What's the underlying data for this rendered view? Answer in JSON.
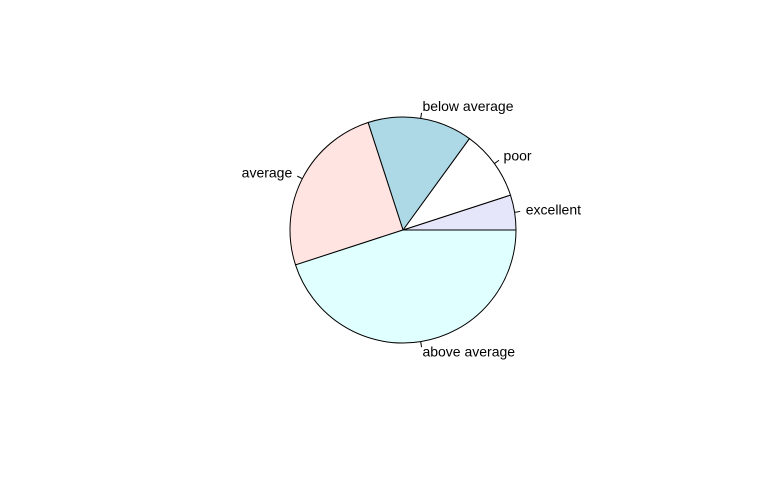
{
  "chart_data": {
    "type": "pie",
    "title": "",
    "start_angle_deg": 0,
    "direction": "counterclockwise",
    "slices": [
      {
        "label": "excellent",
        "value": 5,
        "color": "#E6E6FA"
      },
      {
        "label": "poor",
        "value": 10,
        "color": "#FFFFFF"
      },
      {
        "label": "below average",
        "value": 15,
        "color": "#ADD8E6"
      },
      {
        "label": "average",
        "value": 25,
        "color": "#FFE4E1"
      },
      {
        "label": "above average",
        "value": 45,
        "color": "#E0FFFF"
      }
    ]
  }
}
